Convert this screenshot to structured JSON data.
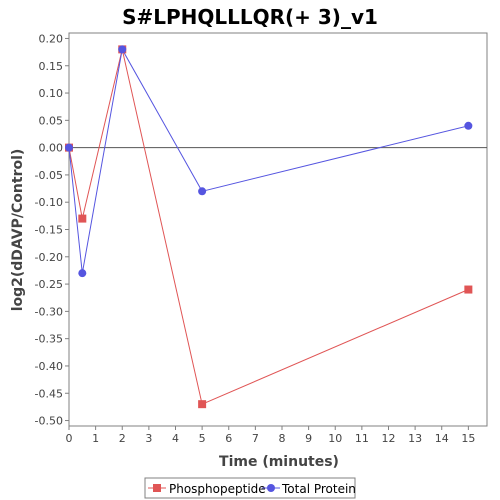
{
  "chart_data": {
    "type": "line",
    "title": "S#LPHQLLLQR(+ 3)_v1",
    "xlabel": "Time (minutes)",
    "ylabel": "log2(dDAVP/Control)",
    "xlim": [
      0,
      15.7
    ],
    "ylim": [
      -0.51,
      0.21
    ],
    "xticks": [
      0,
      1,
      2,
      3,
      4,
      5,
      6,
      7,
      8,
      9,
      10,
      11,
      12,
      13,
      14,
      15
    ],
    "yticks": [
      0.2,
      0.15,
      0.1,
      0.05,
      0.0,
      -0.05,
      -0.1,
      -0.15,
      -0.2,
      -0.25,
      -0.3,
      -0.35,
      -0.4,
      -0.45,
      -0.5
    ],
    "ytick_labels": [
      "0.20",
      "0.15",
      "0.10",
      "0.05",
      "0.00",
      "-0.05",
      "-0.10",
      "-0.15",
      "-0.20",
      "-0.25",
      "-0.30",
      "-0.35",
      "-0.40",
      "-0.45",
      "-0.50"
    ],
    "zero_line": true,
    "grid": false,
    "legend_position": "bottom",
    "series": [
      {
        "name": "Phosphopeptide",
        "color": "#e05555",
        "marker": "square",
        "x": [
          0,
          0.5,
          2,
          5,
          15
        ],
        "y": [
          0.0,
          -0.13,
          0.18,
          -0.47,
          -0.26
        ]
      },
      {
        "name": "Total Protein",
        "color": "#5555e0",
        "marker": "circle",
        "x": [
          0,
          0.5,
          2,
          5,
          15
        ],
        "y": [
          0.0,
          -0.23,
          0.18,
          -0.08,
          0.04
        ]
      }
    ]
  }
}
